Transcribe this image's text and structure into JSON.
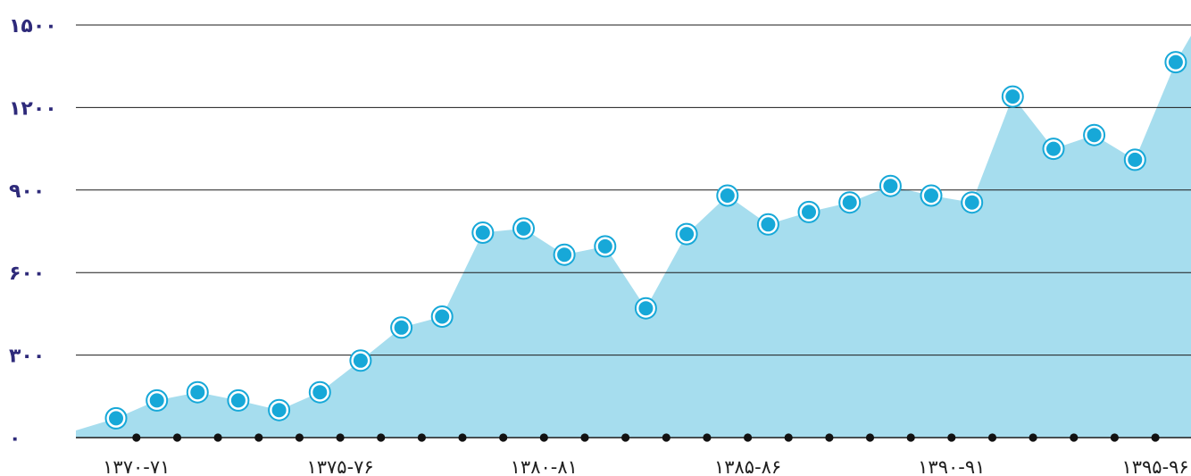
{
  "colors": {
    "area_fill": "#a6ddee",
    "point_fill": "#17a8d8",
    "point_ring": "#17a8d8",
    "grid": "#1a1a1a",
    "axis_labels": "#2e2a7a",
    "x_labels": "#1f1f1f"
  },
  "chart_data": {
    "type": "area",
    "title": "",
    "xlabel": "",
    "ylabel": "",
    "ylim": [
      0,
      1500
    ],
    "y_ticks": [
      0,
      300,
      600,
      900,
      1200,
      1500
    ],
    "y_tick_labels": [
      "۰",
      "۳۰۰",
      "۶۰۰",
      "۹۰۰",
      "۱۲۰۰",
      "۱۵۰۰"
    ],
    "x_tick_labels": [
      "۱۳۷۰-۷۱",
      "۱۳۷۵-۷۶",
      "۱۳۸۰-۸۱",
      "۱۳۸۵-۸۶",
      "۱۳۹۰-۹۱",
      "۱۳۹۵-۹۶"
    ],
    "x_tick_label_indices": [
      0,
      5,
      10,
      15,
      20,
      25
    ],
    "grid": true,
    "series": [
      {
        "values": [
          70,
          135,
          165,
          135,
          100,
          165,
          280,
          400,
          440,
          745,
          760,
          665,
          695,
          470,
          740,
          880,
          775,
          820,
          855,
          915,
          880,
          855,
          1240,
          1050,
          1100,
          1010,
          1365
        ]
      }
    ]
  }
}
